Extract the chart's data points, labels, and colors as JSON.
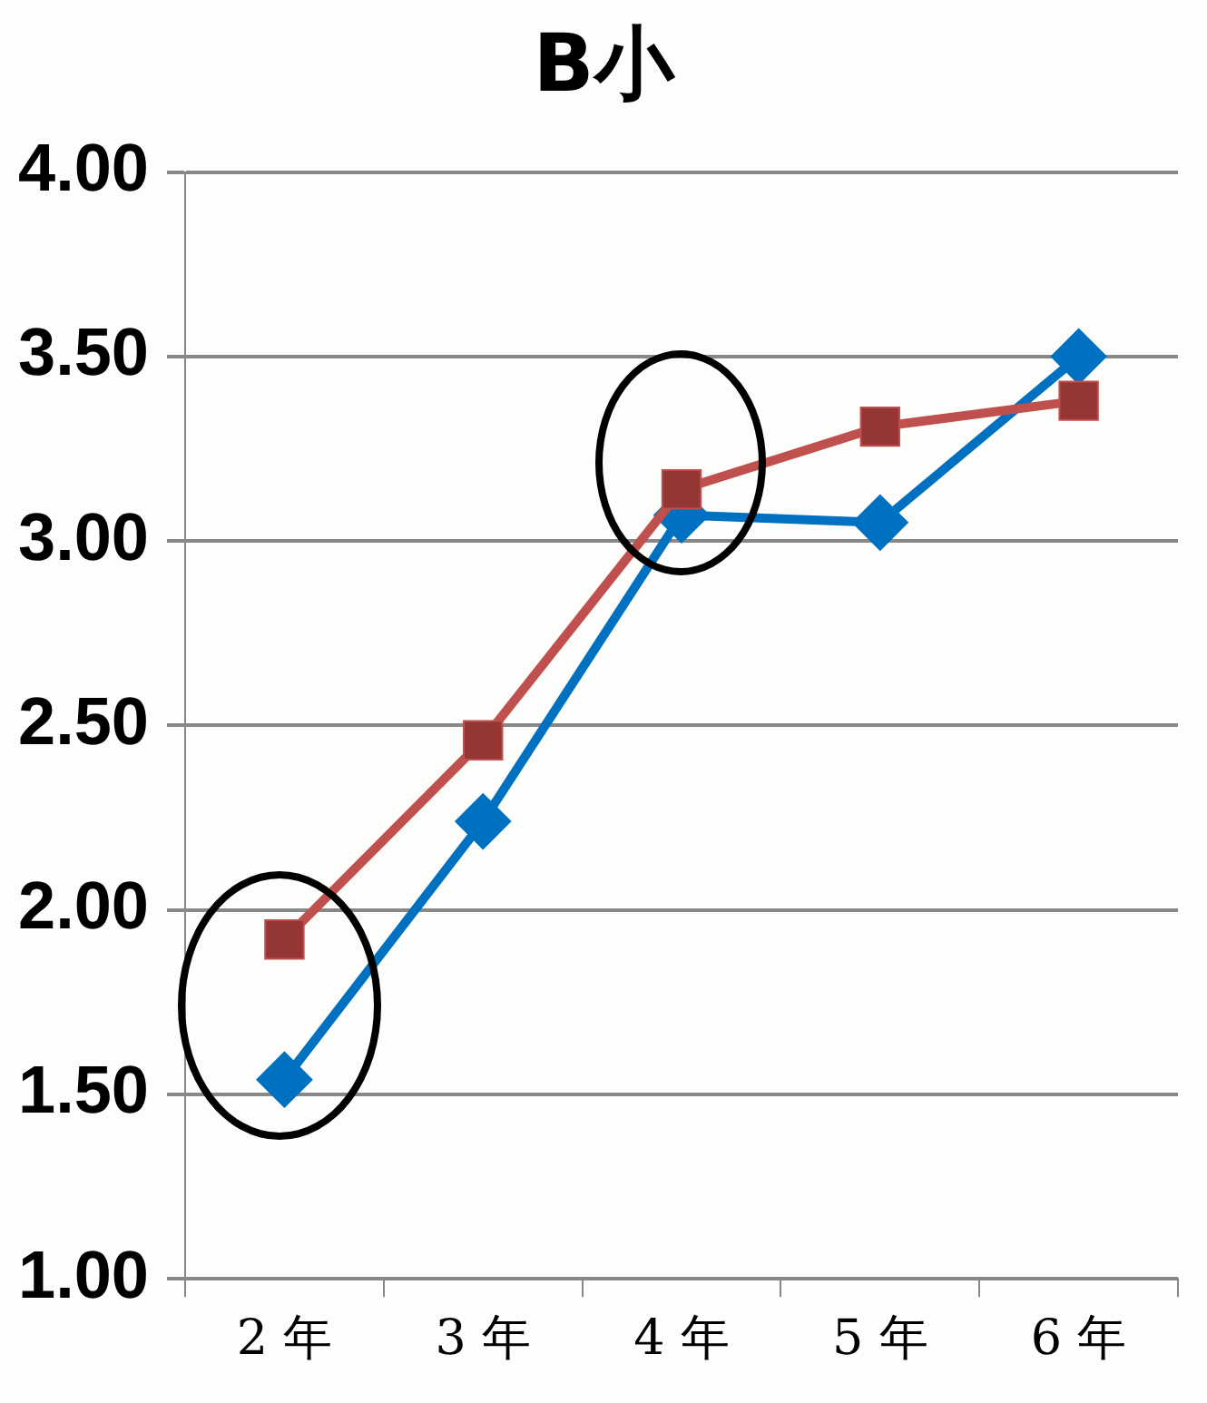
{
  "chart_data": {
    "type": "line",
    "title": "B小",
    "categories": [
      "2 年",
      "3 年",
      "4 年",
      "5 年",
      "6 年"
    ],
    "series": [
      {
        "color": "#0070c0",
        "marker": "diamond",
        "values": [
          1.54,
          2.24,
          3.07,
          3.05,
          3.5
        ]
      },
      {
        "color": "#c0504d",
        "marker": "square",
        "values": [
          1.92,
          2.46,
          3.14,
          3.31,
          3.38
        ]
      }
    ],
    "ylim": [
      1,
      4
    ],
    "yticks": [
      {
        "value": 1,
        "label": "1.00"
      },
      {
        "value": 1.5,
        "label": "1.50"
      },
      {
        "value": 2,
        "label": "2.00"
      },
      {
        "value": 2.5,
        "label": "2.50"
      },
      {
        "value": 3,
        "label": "3.00"
      },
      {
        "value": 3.5,
        "label": "3.50"
      },
      {
        "value": 4,
        "label": "4.00"
      }
    ],
    "grid": "y",
    "legend": false
  }
}
